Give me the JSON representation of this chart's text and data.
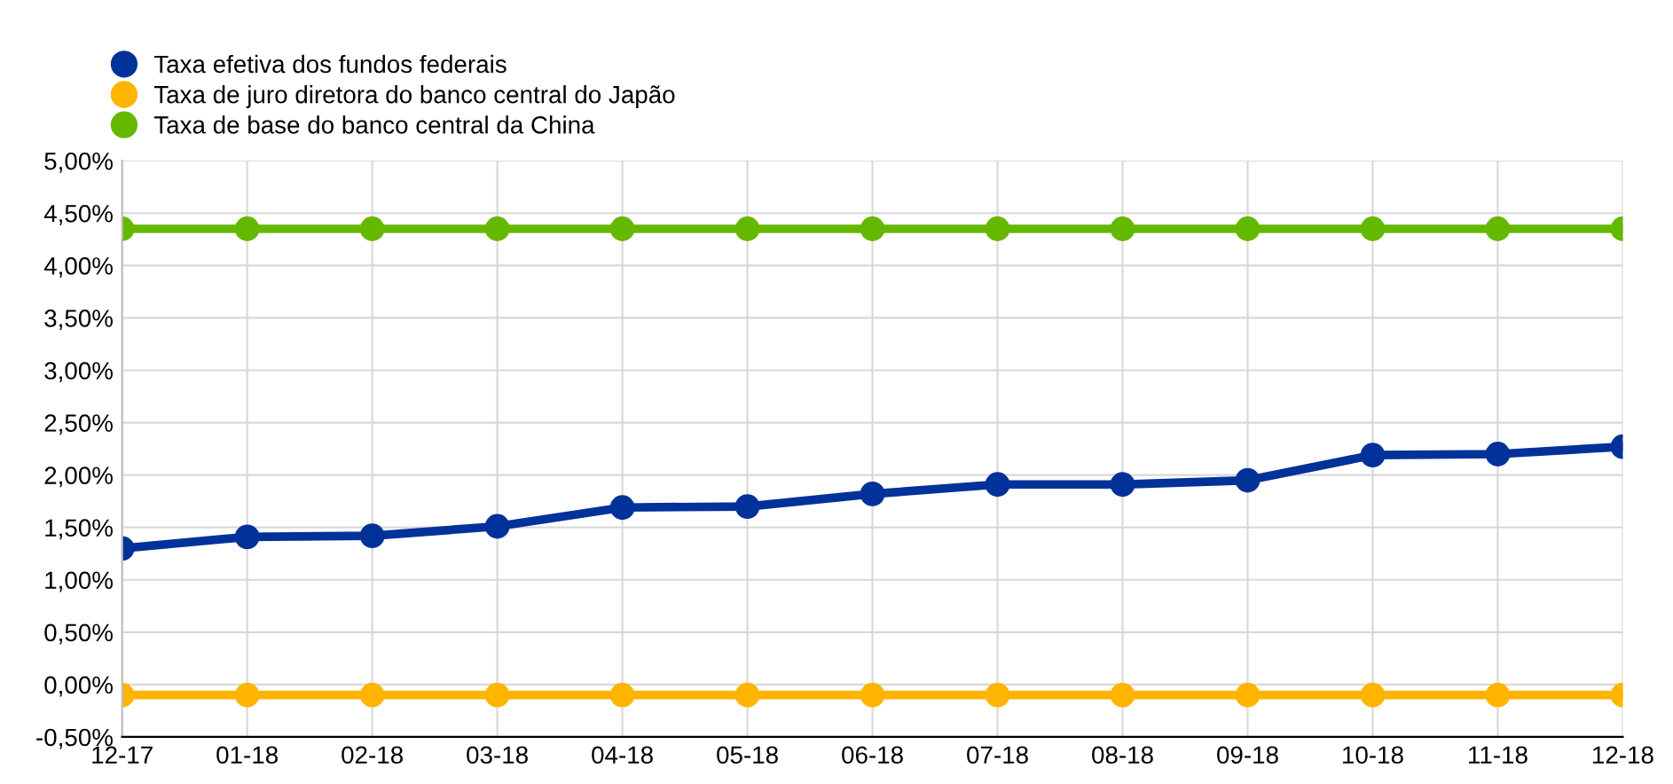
{
  "chart_data": {
    "type": "line",
    "categories": [
      "12-17",
      "01-18",
      "02-18",
      "03-18",
      "04-18",
      "05-18",
      "06-18",
      "07-18",
      "08-18",
      "09-18",
      "10-18",
      "11-18",
      "12-18"
    ],
    "series": [
      {
        "name": "Taxa efetiva dos fundos federais",
        "color": "#003299",
        "values": [
          1.3,
          1.41,
          1.42,
          1.51,
          1.69,
          1.7,
          1.82,
          1.91,
          1.91,
          1.95,
          2.19,
          2.2,
          2.27
        ]
      },
      {
        "name": "Taxa de juro diretora do banco central do Japão",
        "color": "#ffb400",
        "values": [
          -0.1,
          -0.1,
          -0.1,
          -0.1,
          -0.1,
          -0.1,
          -0.1,
          -0.1,
          -0.1,
          -0.1,
          -0.1,
          -0.1,
          -0.1
        ]
      },
      {
        "name": "Taxa de base do banco central da China",
        "color": "#65b800",
        "values": [
          4.35,
          4.35,
          4.35,
          4.35,
          4.35,
          4.35,
          4.35,
          4.35,
          4.35,
          4.35,
          4.35,
          4.35,
          4.35
        ]
      }
    ],
    "ylim": [
      -0.5,
      5.0
    ],
    "yticks": [
      {
        "value": -0.5,
        "label": "-0,50%"
      },
      {
        "value": 0,
        "label": "0,00%"
      },
      {
        "value": 0.5,
        "label": "0,50%"
      },
      {
        "value": 1,
        "label": "1,00%"
      },
      {
        "value": 1.5,
        "label": "1,50%"
      },
      {
        "value": 2,
        "label": "2,00%"
      },
      {
        "value": 2.5,
        "label": "2,50%"
      },
      {
        "value": 3,
        "label": "3,00%"
      },
      {
        "value": 3.5,
        "label": "3,50%"
      },
      {
        "value": 4,
        "label": "4,00%"
      },
      {
        "value": 4.5,
        "label": "4,50%"
      },
      {
        "value": 5,
        "label": "5,00%"
      }
    ],
    "grid": true,
    "legend": "top left",
    "marker": "circle",
    "line_style": "solid"
  }
}
